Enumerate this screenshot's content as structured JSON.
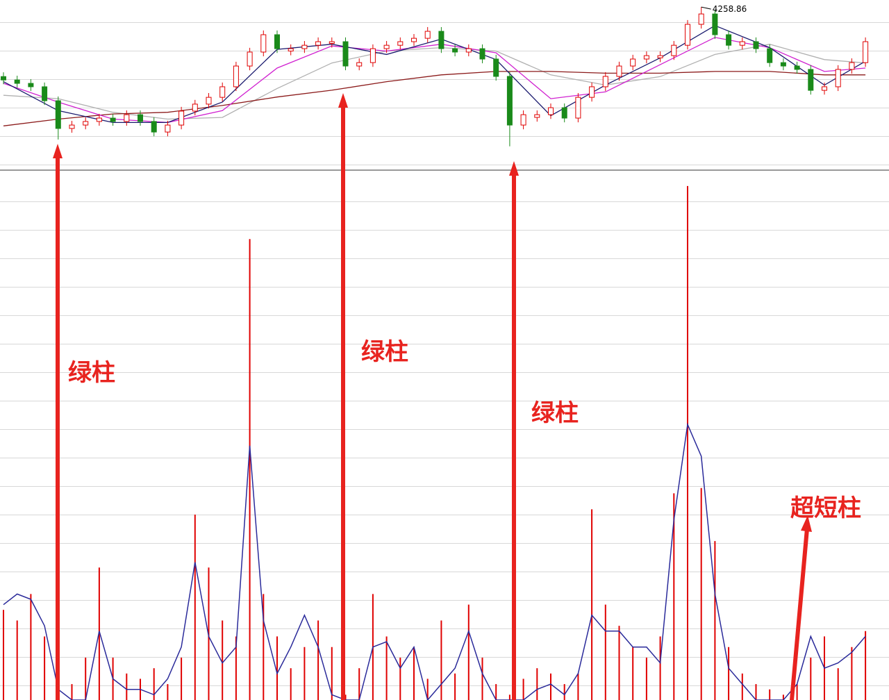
{
  "chart_data": [
    {
      "type": "candlestick",
      "max_label": "4258.86",
      "up_color": "#e00000",
      "down_color": "#1a8a1a",
      "ylim": [
        3300,
        4300
      ],
      "open": [
        3850,
        3830,
        3810,
        3790,
        3708,
        3545,
        3565,
        3586,
        3606,
        3586,
        3626,
        3586,
        3524,
        3565,
        3647,
        3688,
        3728,
        3790,
        3912,
        3994,
        4096,
        4000,
        4014,
        4034,
        4045,
        4055,
        3912,
        3932,
        4014,
        4034,
        4055,
        4075,
        4116,
        4014,
        3994,
        4014,
        3953,
        3851,
        3565,
        3610,
        3626,
        3667,
        3606,
        3728,
        3790,
        3851,
        3912,
        3953,
        3960,
        3973,
        4034,
        4157,
        4218,
        4096,
        4034,
        4055,
        4014,
        3932,
        3912,
        3892,
        3769,
        3790,
        3892,
        3932
      ],
      "high": [
        3875,
        3855,
        3835,
        3815,
        3733,
        3590,
        3611,
        3631,
        3631,
        3651,
        3651,
        3611,
        3590,
        3672,
        3713,
        3753,
        3815,
        3937,
        4019,
        4121,
        4121,
        4039,
        4059,
        4080,
        4080,
        4080,
        3957,
        4039,
        4059,
        4080,
        4100,
        4141,
        4141,
        4039,
        4039,
        4039,
        3978,
        3876,
        3651,
        3651,
        3692,
        3692,
        3753,
        3815,
        3876,
        3937,
        3978,
        3998,
        3998,
        4059,
        4182,
        4258.86,
        4243,
        4121,
        4080,
        4080,
        4039,
        3957,
        3937,
        3917,
        3815,
        3917,
        3957,
        4080
      ],
      "low": [
        3805,
        3785,
        3765,
        3683,
        3480,
        3520,
        3540,
        3561,
        3561,
        3561,
        3561,
        3499,
        3499,
        3540,
        3622,
        3663,
        3703,
        3765,
        3887,
        3969,
        3989,
        3975,
        3989,
        4009,
        4020,
        3887,
        3887,
        3907,
        3989,
        4009,
        4030,
        4050,
        3989,
        3969,
        3969,
        3928,
        3826,
        3440,
        3540,
        3585,
        3601,
        3581,
        3581,
        3703,
        3765,
        3826,
        3887,
        3928,
        3935,
        3948,
        4009,
        4132,
        4071,
        4009,
        4009,
        3989,
        3907,
        3887,
        3867,
        3744,
        3744,
        3765,
        3867,
        3907
      ],
      "close": [
        3830,
        3810,
        3790,
        3708,
        3545,
        3565,
        3586,
        3606,
        3586,
        3626,
        3586,
        3524,
        3565,
        3647,
        3688,
        3728,
        3790,
        3912,
        3994,
        4096,
        4014,
        4014,
        4034,
        4055,
        4055,
        3912,
        3932,
        4014,
        4034,
        4055,
        4075,
        4116,
        4014,
        3994,
        4014,
        3953,
        3851,
        3565,
        3626,
        3626,
        3667,
        3606,
        3728,
        3790,
        3851,
        3912,
        3953,
        3973,
        3973,
        4034,
        4157,
        4218,
        4096,
        4034,
        4055,
        4014,
        3932,
        3912,
        3892,
        3769,
        3790,
        3892,
        3932,
        4055
      ],
      "overlays": [
        {
          "color": "#b0b0b0",
          "x": [
            0,
            4,
            8,
            12,
            16,
            20,
            24,
            28,
            32,
            36,
            40,
            44,
            48,
            52,
            56,
            60,
            63
          ],
          "values": [
            3740,
            3720,
            3640,
            3600,
            3610,
            3780,
            3930,
            4000,
            4020,
            4000,
            3860,
            3800,
            3850,
            3980,
            4040,
            3950,
            3930
          ]
        },
        {
          "color": "#8b1a1a",
          "x": [
            0,
            4,
            8,
            12,
            16,
            20,
            24,
            28,
            32,
            36,
            40,
            44,
            48,
            52,
            56,
            60,
            63
          ],
          "values": [
            3560,
            3600,
            3630,
            3640,
            3680,
            3730,
            3770,
            3820,
            3860,
            3880,
            3880,
            3870,
            3870,
            3880,
            3880,
            3860,
            3860
          ]
        },
        {
          "color": "#d020d0",
          "x": [
            0,
            4,
            8,
            12,
            16,
            20,
            24,
            28,
            32,
            36,
            40,
            44,
            48,
            52,
            56,
            60,
            63
          ],
          "values": [
            3810,
            3700,
            3600,
            3580,
            3650,
            3900,
            4030,
            4000,
            4040,
            3990,
            3720,
            3760,
            3920,
            4080,
            4020,
            3880,
            3900
          ]
        },
        {
          "color": "#1a1a6e",
          "x": [
            0,
            4,
            8,
            12,
            16,
            20,
            24,
            28,
            32,
            36,
            40,
            44,
            48,
            52,
            56,
            60,
            63
          ],
          "values": [
            3820,
            3650,
            3580,
            3580,
            3700,
            4010,
            4040,
            3980,
            4070,
            3950,
            3620,
            3800,
            3960,
            4150,
            4020,
            3800,
            3940
          ]
        }
      ]
    },
    {
      "type": "bar",
      "ylim": [
        0,
        100
      ],
      "series": [
        {
          "type": "bar",
          "color": "#e00000",
          "values": [
            17,
            15,
            20,
            12,
            1,
            3,
            8,
            25,
            8,
            5,
            4,
            6,
            3,
            8,
            35,
            25,
            15,
            12,
            87,
            20,
            12,
            6,
            10,
            15,
            10,
            1,
            6,
            20,
            12,
            8,
            10,
            4,
            15,
            5,
            18,
            8,
            3,
            1,
            4,
            6,
            5,
            3,
            5,
            36,
            18,
            14,
            10,
            8,
            12,
            39,
            97,
            40,
            30,
            10,
            5,
            3,
            2,
            1,
            3,
            8,
            12,
            6,
            10,
            13
          ]
        },
        {
          "type": "line",
          "color": "#2a2a9a",
          "values": [
            18,
            20,
            19,
            14,
            2,
            0,
            0,
            13,
            4,
            2,
            2,
            1,
            4,
            10,
            26,
            12,
            7,
            10,
            48,
            15,
            5,
            10,
            16,
            10,
            1,
            0,
            0,
            10,
            11,
            6,
            10,
            0,
            3,
            6,
            13,
            5,
            0,
            0,
            0,
            2,
            3,
            1,
            5,
            16,
            13,
            13,
            10,
            10,
            7,
            34,
            52,
            46,
            20,
            6,
            3,
            0,
            0,
            0,
            3,
            12,
            6,
            7,
            9,
            12
          ]
        }
      ],
      "annotations": [
        "绿柱",
        "绿柱",
        "绿柱",
        "超短柱"
      ]
    }
  ]
}
